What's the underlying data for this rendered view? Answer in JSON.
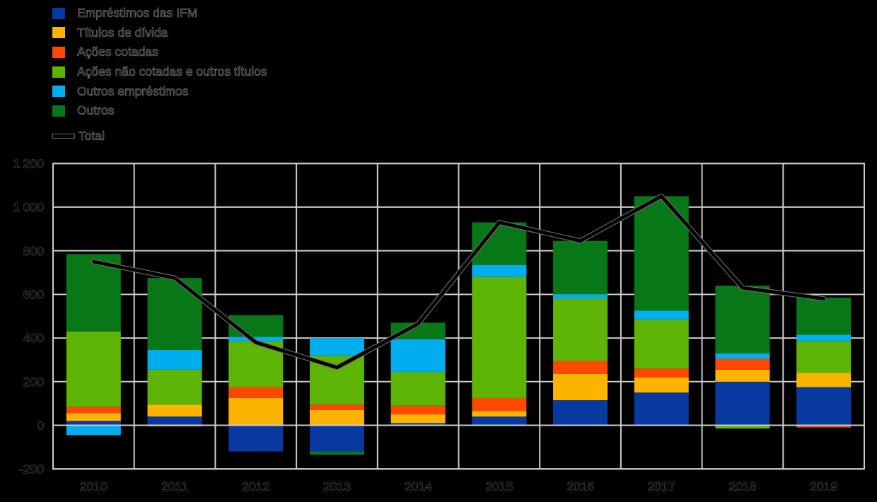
{
  "background_color": "#000000",
  "grid_color": "#cccccc",
  "line_halo_color": "#6e6e6e",
  "legend": {
    "items": [
      {
        "label": "Empréstimos das IFM",
        "color": "#0839A0",
        "type": "box"
      },
      {
        "label": "Títulos de dívida",
        "color": "#FCB400",
        "type": "box"
      },
      {
        "label": "Ações cotadas",
        "color": "#FB4A00",
        "type": "box"
      },
      {
        "label": "Ações não cotadas e outros títulos",
        "color": "#5EB404",
        "type": "box"
      },
      {
        "label": "Outros empréstimos",
        "color": "#00AEEF",
        "type": "box"
      },
      {
        "label": "Outros",
        "color": "#077718",
        "type": "box"
      },
      {
        "label": "Total",
        "color": "#000000",
        "type": "line"
      }
    ]
  },
  "chart_data": {
    "type": "bar",
    "subtype": "stacked-bar-with-line",
    "categories": [
      "2010",
      "2011",
      "2012",
      "2013",
      "2014",
      "2015",
      "2016",
      "2017",
      "2018",
      "2019"
    ],
    "series": [
      {
        "name": "Empréstimos das IFM",
        "color": "#0839A0",
        "values": [
          20,
          40,
          -120,
          -120,
          10,
          40,
          115,
          150,
          200,
          175
        ]
      },
      {
        "name": "Títulos de dívida",
        "color": "#FCB400",
        "values": [
          35,
          55,
          125,
          70,
          40,
          25,
          120,
          70,
          55,
          65
        ]
      },
      {
        "name": "Ações cotadas",
        "color": "#FB4A00",
        "values": [
          30,
          -5,
          50,
          25,
          40,
          60,
          60,
          40,
          50,
          -10
        ]
      },
      {
        "name": "Ações não cotadas e outros títulos",
        "color": "#5EB404",
        "values": [
          345,
          160,
          210,
          225,
          155,
          555,
          285,
          225,
          -15,
          145
        ]
      },
      {
        "name": "Outros empréstimos",
        "color": "#00AEEF",
        "values": [
          -45,
          90,
          20,
          80,
          150,
          55,
          20,
          40,
          25,
          30
        ]
      },
      {
        "name": "Outros",
        "color": "#077718",
        "values": [
          355,
          330,
          100,
          -15,
          75,
          195,
          245,
          525,
          310,
          170
        ]
      }
    ],
    "line_series": {
      "name": "Total",
      "color": "#000000",
      "values": [
        750,
        675,
        380,
        265,
        465,
        930,
        845,
        1050,
        630,
        580
      ]
    },
    "title": "",
    "xlabel": "",
    "ylabel": "",
    "ylim": [
      -200,
      1200
    ],
    "grid": true,
    "legend_position": "top-left",
    "y_ticks": [
      {
        "value": 1200,
        "label": "1 200"
      },
      {
        "value": 1000,
        "label": "1 000"
      },
      {
        "value": 800,
        "label": "800"
      },
      {
        "value": 600,
        "label": "600"
      },
      {
        "value": 400,
        "label": "400"
      },
      {
        "value": 200,
        "label": "200"
      },
      {
        "value": 0,
        "label": "0"
      },
      {
        "value": -200,
        "label": "-200"
      }
    ]
  }
}
